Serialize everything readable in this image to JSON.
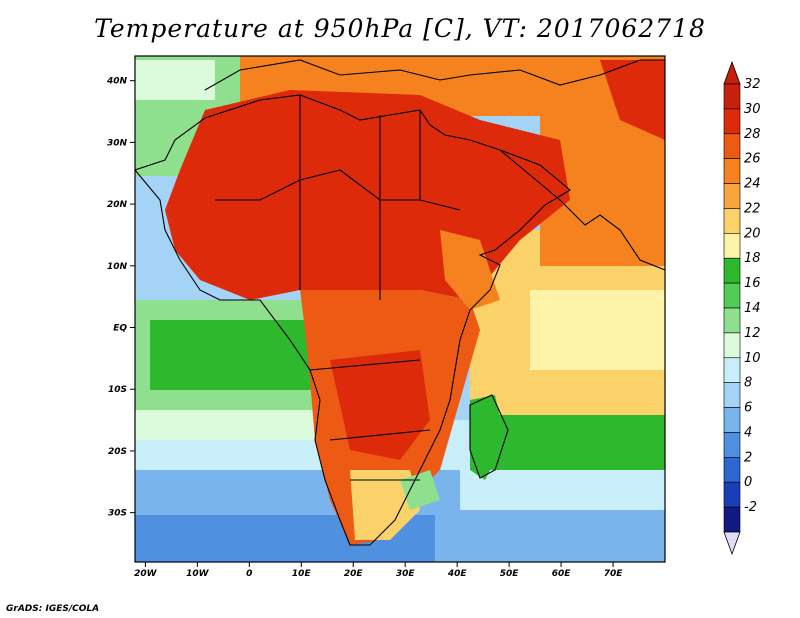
{
  "title": "Temperature at 950hPa [C], VT: 2017062718",
  "credit": "GrADS: IGES/COLA",
  "map": {
    "lon_range": [
      -22,
      80
    ],
    "lat_range": [
      -38,
      44
    ],
    "lat_ticks": [
      {
        "lat": 40,
        "label": "40N"
      },
      {
        "lat": 30,
        "label": "30N"
      },
      {
        "lat": 20,
        "label": "20N"
      },
      {
        "lat": 10,
        "label": "10N"
      },
      {
        "lat": 0,
        "label": "EQ"
      },
      {
        "lat": -10,
        "label": "10S"
      },
      {
        "lat": -20,
        "label": "20S"
      },
      {
        "lat": -30,
        "label": "30S"
      }
    ],
    "lon_ticks": [
      {
        "lon": -20,
        "label": "20W"
      },
      {
        "lon": -10,
        "label": "10W"
      },
      {
        "lon": 0,
        "label": "0"
      },
      {
        "lon": 10,
        "label": "10E"
      },
      {
        "lon": 20,
        "label": "20E"
      },
      {
        "lon": 30,
        "label": "30E"
      },
      {
        "lon": 40,
        "label": "40E"
      },
      {
        "lon": 50,
        "label": "50E"
      },
      {
        "lon": 60,
        "label": "60E"
      },
      {
        "lon": 70,
        "label": "70E"
      }
    ]
  },
  "colorbar": {
    "levels": [
      {
        "label": "32",
        "color": "#c8200e"
      },
      {
        "label": "30",
        "color": "#dd2a0a"
      },
      {
        "label": "28",
        "color": "#ed5a14"
      },
      {
        "label": "26",
        "color": "#f5821f"
      },
      {
        "label": "24",
        "color": "#f9a53e"
      },
      {
        "label": "22",
        "color": "#fbd16a"
      },
      {
        "label": "20",
        "color": "#fdf3a8"
      },
      {
        "label": "18",
        "color": "#2eb82e"
      },
      {
        "label": "16",
        "color": "#52cc52"
      },
      {
        "label": "14",
        "color": "#8ee08e"
      },
      {
        "label": "12",
        "color": "#dcfadc"
      },
      {
        "label": "10",
        "color": "#c8eefa"
      },
      {
        "label": "8",
        "color": "#a4d3f5"
      },
      {
        "label": "6",
        "color": "#7ab4ed"
      },
      {
        "label": "4",
        "color": "#4f90e0"
      },
      {
        "label": "2",
        "color": "#2f66d0"
      },
      {
        "label": "0",
        "color": "#1a3eb8"
      },
      {
        "label": "-2",
        "color": "#101a80"
      }
    ],
    "top_arrow_color": "#c81e0a",
    "bottom_arrow_color": "#e0dcf5"
  },
  "colors": {
    "ocean_base": "#a4d3f5",
    "very_hot": "#dd2a0a",
    "hot": "#ed5a14",
    "warm": "#f5821f",
    "mild": "#f9a53e",
    "pale": "#fbd16a",
    "cream": "#fdf3a8",
    "green": "#2eb82e",
    "light_green": "#8ee08e",
    "mint": "#dcfadc",
    "sky": "#c8eefa",
    "blue": "#7ab4ed",
    "deep_blue": "#4f90e0"
  }
}
